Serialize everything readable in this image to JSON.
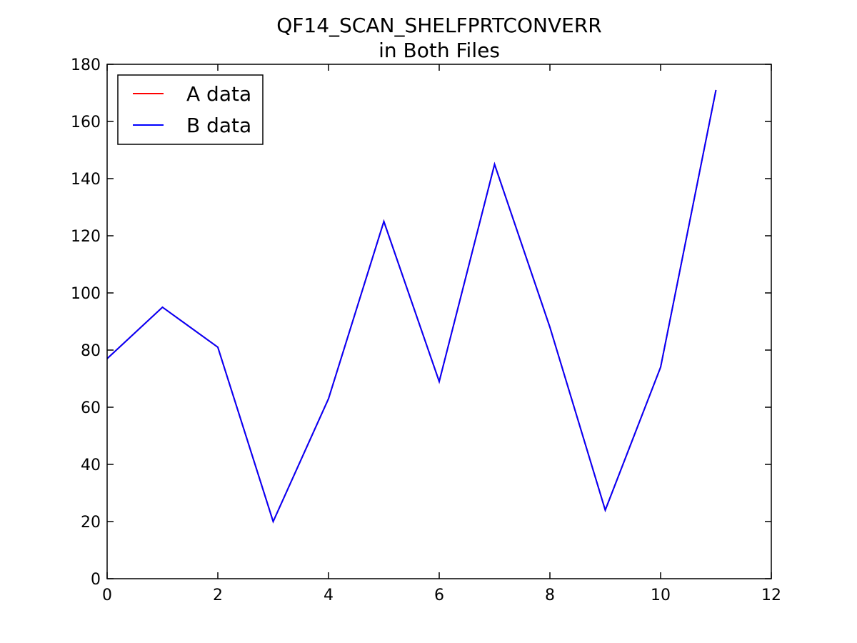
{
  "chart_data": {
    "type": "line",
    "title": "QF14_SCAN_SHELFPRTCONVERR",
    "subtitle": "in Both Files",
    "xlabel": "",
    "ylabel": "",
    "xlim": [
      0,
      12
    ],
    "ylim": [
      0,
      180
    ],
    "xticks": [
      0,
      2,
      4,
      6,
      8,
      10,
      12
    ],
    "yticks": [
      0,
      20,
      40,
      60,
      80,
      100,
      120,
      140,
      160,
      180
    ],
    "grid": false,
    "legend_position": "top-left",
    "x": [
      0,
      1,
      2,
      3,
      4,
      5,
      6,
      7,
      8,
      9,
      10,
      11
    ],
    "series": [
      {
        "name": "A data",
        "color": "#ff0000",
        "values": [
          77,
          95,
          81,
          20,
          63,
          125,
          69,
          145,
          88,
          24,
          74,
          171
        ]
      },
      {
        "name": "B data",
        "color": "#0000ff",
        "values": [
          77,
          95,
          81,
          20,
          63,
          125,
          69,
          145,
          88,
          24,
          74,
          171
        ]
      }
    ]
  }
}
